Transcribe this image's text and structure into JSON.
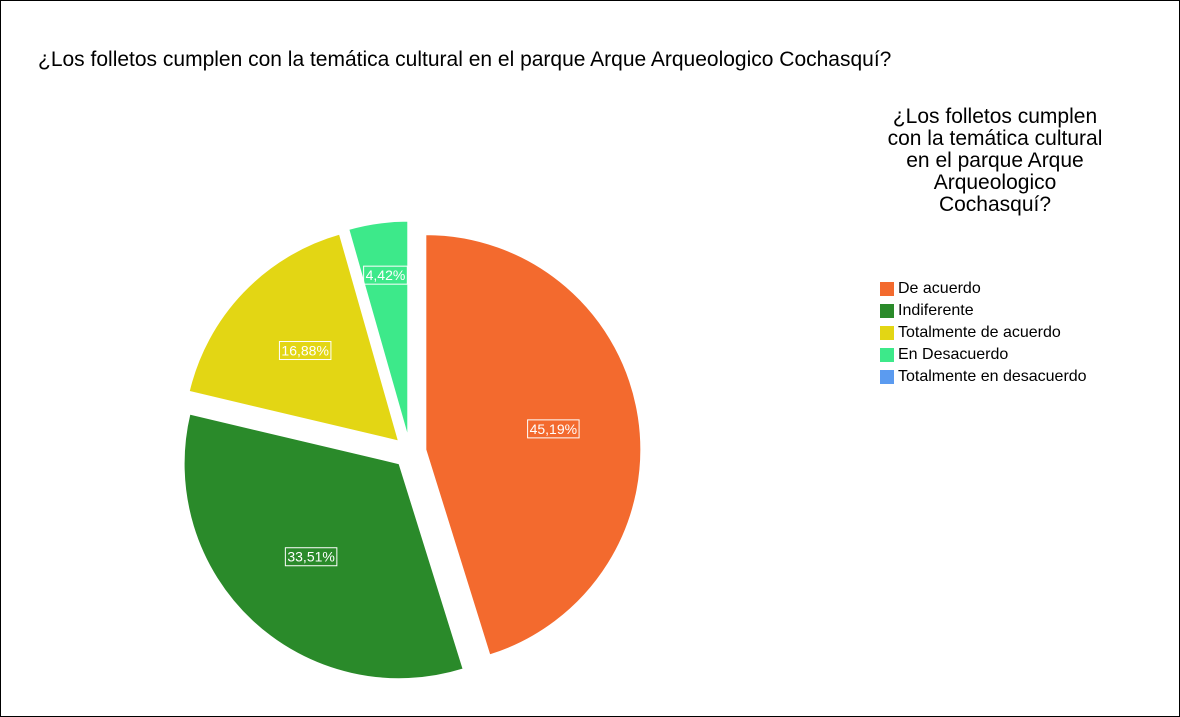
{
  "chart_data": {
    "type": "pie",
    "title": "¿Los folletos cumplen con la temática cultural en el parque Arque Arqueologico Cochasquí?",
    "legend_title": "¿Los folletos cumplen con la temática cultural en el parque Arque Arqueologico Cochasquí?",
    "categories": [
      "De acuerdo",
      "Indiferente",
      "Totalmente de acuerdo",
      "En Desacuerdo",
      "Totalmente en desacuerdo"
    ],
    "values": [
      45.19,
      33.51,
      16.88,
      4.42,
      0
    ],
    "value_labels": [
      "45,19%",
      "33,51%",
      "16,88%",
      "4,42%",
      null
    ],
    "colors": [
      "#f36a2e",
      "#2a8a2a",
      "#e3d614",
      "#3de98a",
      "#5b9bf0"
    ],
    "legend": "right",
    "exploded": true
  }
}
